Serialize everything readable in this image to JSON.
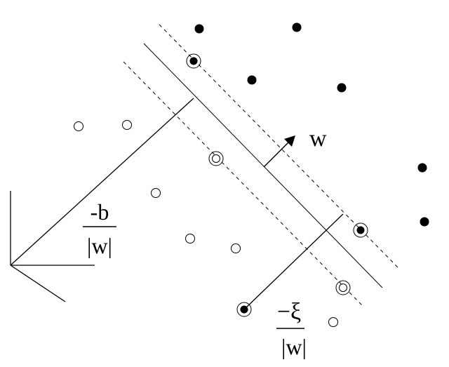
{
  "labels": {
    "w": "w",
    "offset_numerator": "-b",
    "offset_denominator": "|w|",
    "slack_numerator": "−ξ",
    "slack_denominator": "|w|"
  },
  "colors": {
    "ink": "#000000",
    "background": "#ffffff"
  },
  "points": {
    "positive_class": "filled",
    "negative_class": "hollow",
    "support_vector_marker": "double-circle"
  }
}
